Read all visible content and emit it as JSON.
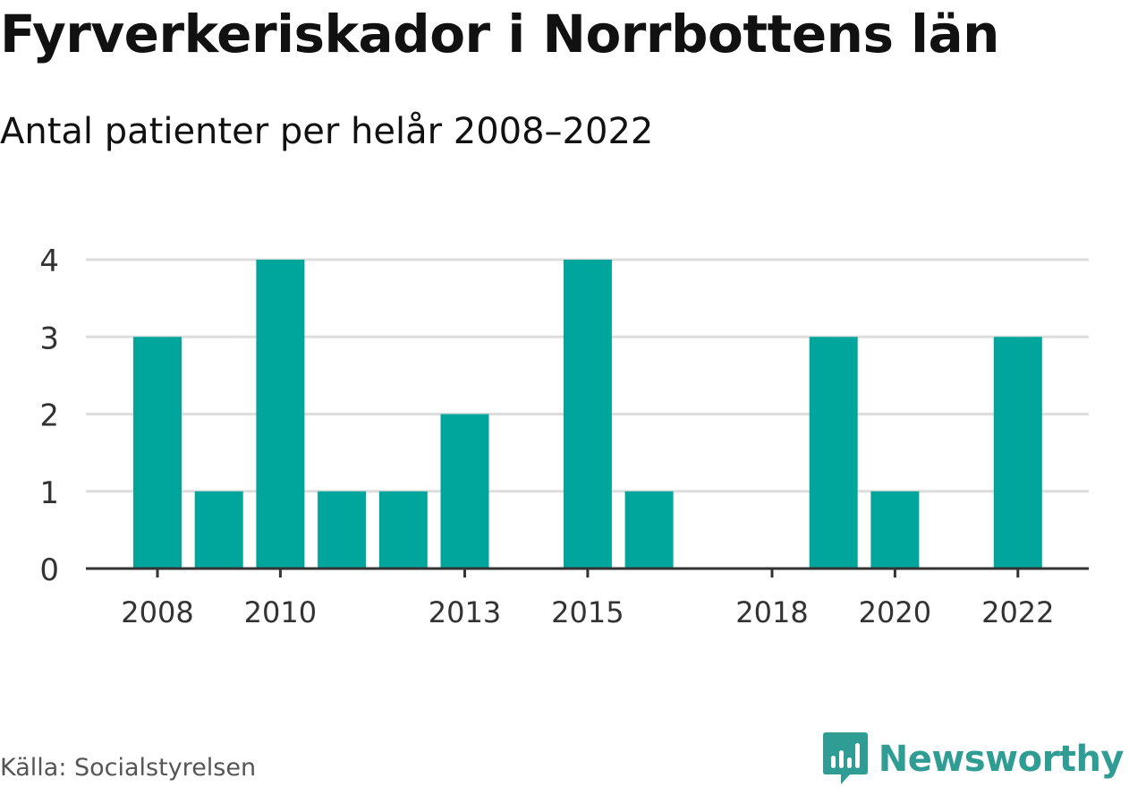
{
  "title": "Fyrverkeriskador i Norrbottens län",
  "subtitle": "Antal patienter per helår 2008–2022",
  "source": "Källa: Socialstyrelsen",
  "brand": {
    "name": "Newsworthy",
    "icon": "newsworthy-logo-icon",
    "color": "#2f9d93"
  },
  "chart_data": {
    "type": "bar",
    "categories": [
      "2008",
      "2009",
      "2010",
      "2011",
      "2012",
      "2013",
      "2014",
      "2015",
      "2016",
      "2017",
      "2018",
      "2019",
      "2020",
      "2021",
      "2022"
    ],
    "values": [
      3,
      1,
      4,
      1,
      1,
      2,
      0,
      4,
      1,
      0,
      0,
      3,
      1,
      0,
      3
    ],
    "x_tick_labels": [
      "2008",
      "2010",
      "2013",
      "2015",
      "2018",
      "2020",
      "2022"
    ],
    "y_ticks": [
      0,
      1,
      2,
      3,
      4
    ],
    "ylim": [
      0,
      4
    ],
    "grid": true,
    "colors": {
      "bar": "#00a69c",
      "grid": "#dddddd",
      "axis": "#333333"
    }
  }
}
